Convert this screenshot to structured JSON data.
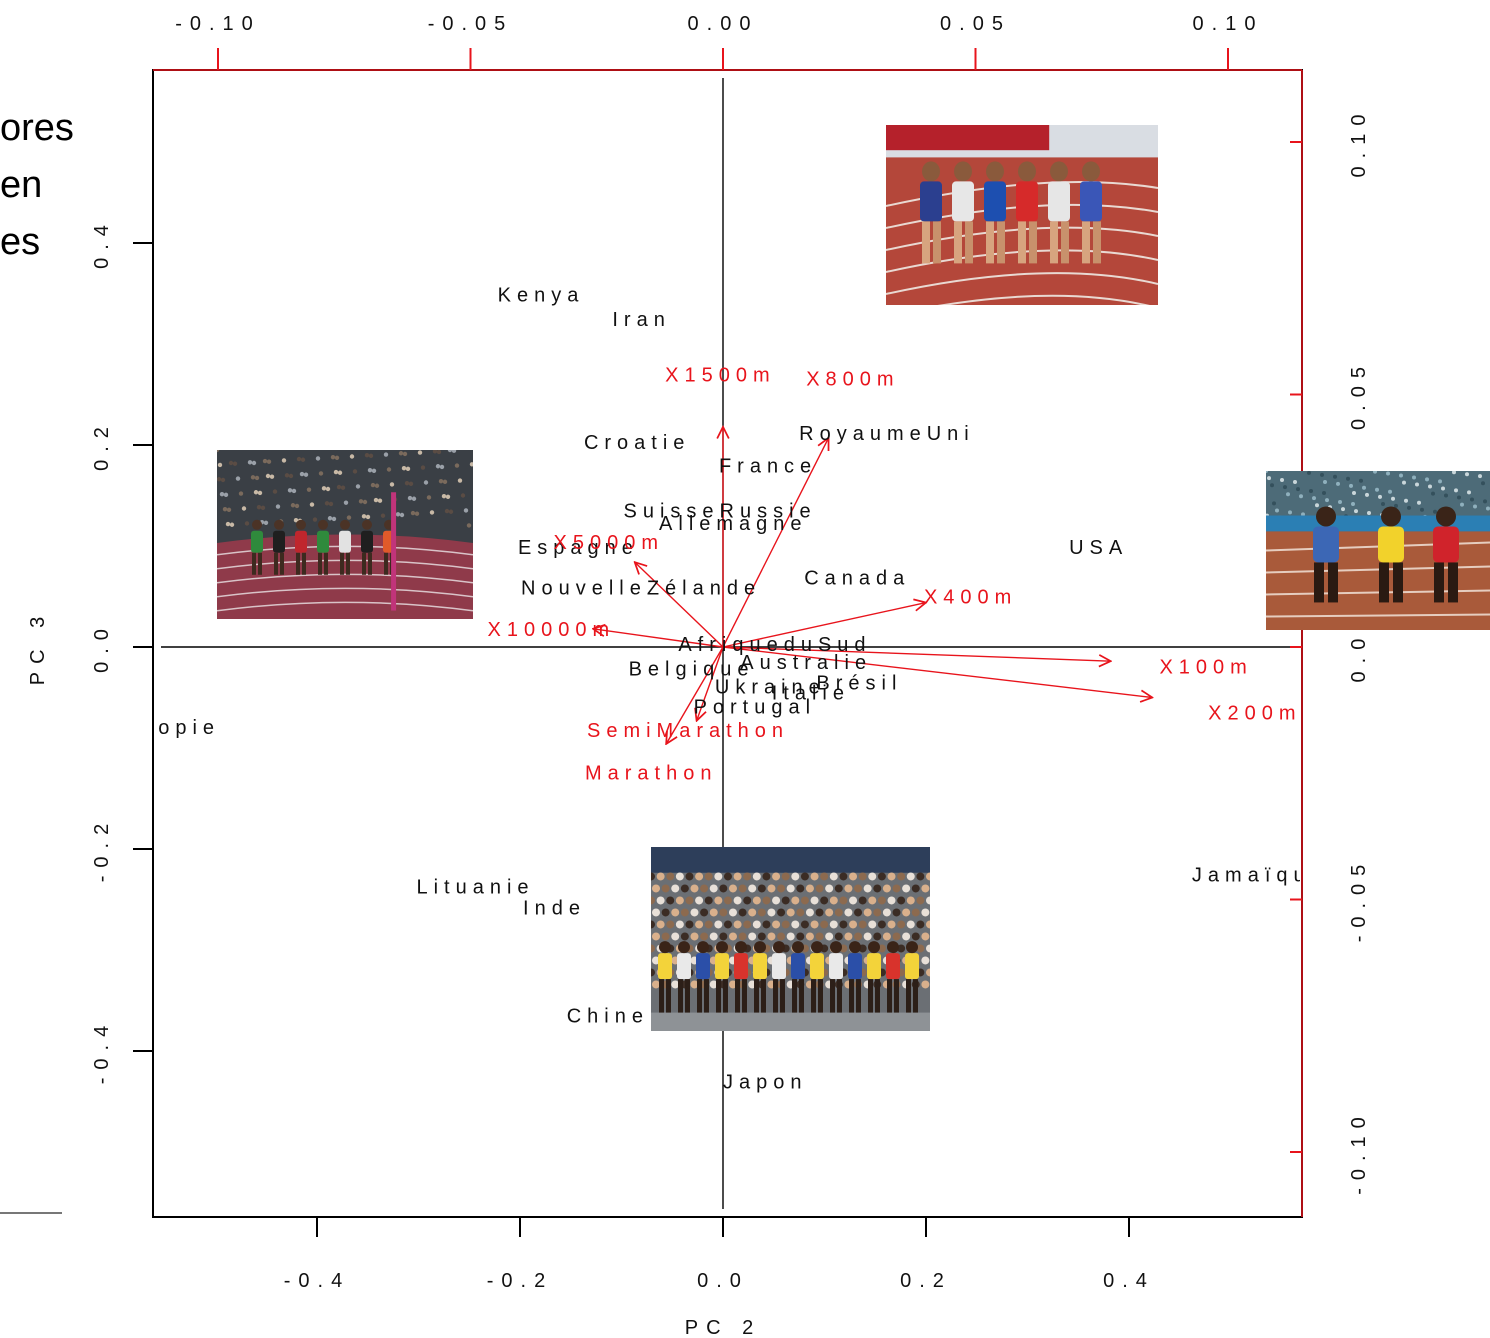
{
  "slide": {
    "text_lines": [
      "ores",
      "en",
      "es"
    ]
  },
  "chart_data": {
    "type": "scatter",
    "subtype": "biplot",
    "xlabel": "PC 2",
    "ylabel": "PC 3",
    "xlim": [
      -0.56,
      0.57
    ],
    "ylim": [
      -0.565,
      0.57
    ],
    "xticks": [
      -0.4,
      -0.2,
      0.0,
      0.2,
      0.4
    ],
    "xtick_labels": [
      "-0.4",
      "-0.2",
      "0.0",
      "0.2",
      "0.4"
    ],
    "yticks": [
      0.4,
      0.2,
      0.0,
      -0.2,
      -0.4
    ],
    "ytick_labels": [
      "0.4",
      "0.2",
      "0.0",
      "-0.2",
      "-0.4"
    ],
    "top_axis": {
      "ticks": [
        -0.1,
        -0.05,
        0.0,
        0.05,
        0.1
      ],
      "tick_labels": [
        "-0.10",
        "-0.05",
        "0.00",
        "0.05",
        "0.10"
      ]
    },
    "right_axis": {
      "ticks": [
        0.1,
        0.05,
        0.0,
        -0.05,
        -0.1
      ],
      "tick_labels": [
        "0.10",
        "0.05",
        "0.00",
        "-0.05",
        "-0.10"
      ]
    },
    "axis_color": "#e8141c",
    "observation_color": "#111111",
    "observations": [
      {
        "label": "Kenya",
        "x": -0.222,
        "y": 0.342
      },
      {
        "label": "Iran",
        "x": -0.109,
        "y": 0.318
      },
      {
        "label": "Croatie",
        "x": -0.137,
        "y": 0.196
      },
      {
        "label": "RoyaumeUni",
        "x": 0.075,
        "y": 0.205
      },
      {
        "label": "France",
        "x": -0.004,
        "y": 0.173
      },
      {
        "label": "SuisseRussie",
        "x": -0.098,
        "y": 0.128
      },
      {
        "label": "Allemagne",
        "x": -0.063,
        "y": 0.116
      },
      {
        "label": "Espagne",
        "x": -0.202,
        "y": 0.092
      },
      {
        "label": "USA",
        "x": 0.341,
        "y": 0.092
      },
      {
        "label": "Canada",
        "x": 0.08,
        "y": 0.062
      },
      {
        "label": "NouvelleZélande",
        "x": -0.199,
        "y": 0.052
      },
      {
        "label": "AfriqueduSud",
        "x": -0.044,
        "y": -0.004
      },
      {
        "label": "Belgique",
        "x": -0.093,
        "y": -0.028
      },
      {
        "label": "Australie",
        "x": 0.017,
        "y": -0.022
      },
      {
        "label": "Brésil",
        "x": 0.092,
        "y": -0.042
      },
      {
        "label": "Ukraine",
        "x": -0.008,
        "y": -0.046
      },
      {
        "label": "Italie",
        "x": 0.048,
        "y": -0.052
      },
      {
        "label": "Portugal",
        "x": -0.029,
        "y": -0.066
      },
      {
        "label": "Éthiopie",
        "x": -0.614,
        "y": -0.086
      },
      {
        "label": "Jamaïque",
        "x": 0.462,
        "y": -0.232
      },
      {
        "label": "Lituanie",
        "x": -0.302,
        "y": -0.244
      },
      {
        "label": "Inde",
        "x": -0.197,
        "y": -0.265
      },
      {
        "label": "Chine",
        "x": -0.154,
        "y": -0.372
      },
      {
        "label": "Japon",
        "x": 0.0,
        "y": -0.437
      }
    ],
    "variables": [
      {
        "label": "X1500m",
        "x": 0.0,
        "y": 0.218
      },
      {
        "label": "X800m",
        "x": 0.104,
        "y": 0.207
      },
      {
        "label": "X5000m",
        "x": -0.087,
        "y": 0.084
      },
      {
        "label": "X10000m",
        "x": -0.128,
        "y": 0.018
      },
      {
        "label": "X400m",
        "x": 0.2,
        "y": 0.044
      },
      {
        "label": "X100m",
        "x": 0.382,
        "y": -0.014
      },
      {
        "label": "X200m",
        "x": 0.423,
        "y": -0.05
      },
      {
        "label": "SemiMarathon",
        "x": -0.026,
        "y": -0.073
      },
      {
        "label": "Marathon",
        "x": -0.056,
        "y": -0.096
      }
    ],
    "variable_label_offsets": {
      "X1500m": [
        -0.057,
        0.263
      ],
      "X800m": [
        0.082,
        0.259
      ],
      "X5000m": [
        -0.167,
        0.097
      ],
      "X10000m": [
        -0.232,
        0.011
      ],
      "X400m": [
        0.198,
        0.043
      ],
      "X100m": [
        0.43,
        -0.026
      ],
      "X200m": [
        0.478,
        -0.072
      ],
      "SemiMarathon": [
        -0.134,
        -0.089
      ],
      "Marathon": [
        -0.136,
        -0.131
      ]
    },
    "variable_color": "#e8141c",
    "grid": false,
    "legend": "none"
  },
  "photos": [
    {
      "name": "middle-distance-race-photo",
      "theme": "track-middle"
    },
    {
      "name": "long-distance-race-photo",
      "theme": "track-long"
    },
    {
      "name": "sprint-race-photo",
      "theme": "sprint"
    },
    {
      "name": "marathon-crowd-photo",
      "theme": "marathon"
    }
  ]
}
